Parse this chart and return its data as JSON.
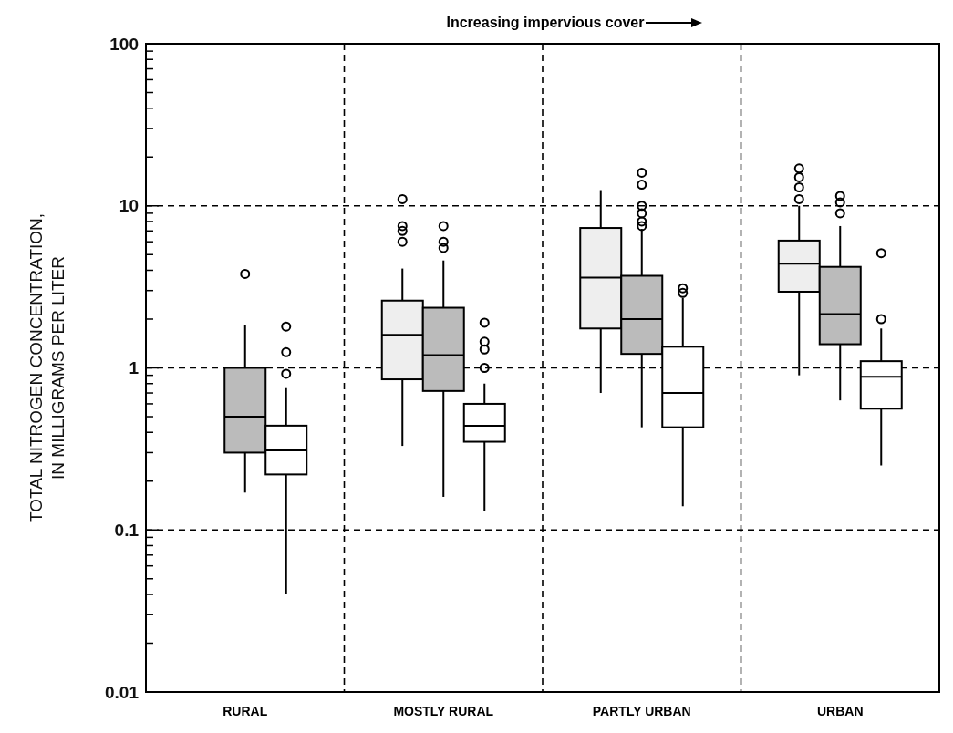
{
  "chart_data": {
    "type": "box",
    "title": "Increasing impervious cover",
    "ylabel": "TOTAL NITROGEN CONCENTRATION, IN MILLIGRAMS PER LITER",
    "categories": [
      "RURAL",
      "MOSTLY RURAL",
      "PARTLY URBAN",
      "URBAN"
    ],
    "log": true,
    "grid": true,
    "ylim": [
      0.01,
      100
    ],
    "yticks": [
      0.01,
      {
        "value": 0.02,
        "label": null
      },
      {
        "value": 0.03,
        "label": null
      },
      {
        "value": 0.04,
        "label": null
      },
      {
        "value": 0.05,
        "label": null
      },
      {
        "value": 0.06,
        "label": null
      },
      {
        "value": 0.07,
        "label": null
      },
      {
        "value": 0.08,
        "label": null
      },
      {
        "value": 0.09,
        "label": null
      },
      0.1,
      {
        "value": 0.2,
        "label": null
      },
      {
        "value": 0.3,
        "label": null
      },
      {
        "value": 0.4,
        "label": null
      },
      {
        "value": 0.5,
        "label": null
      },
      {
        "value": 0.6,
        "label": null
      },
      {
        "value": 0.7,
        "label": null
      },
      {
        "value": 0.8,
        "label": null
      },
      {
        "value": 0.9,
        "label": null
      },
      1,
      {
        "value": 2,
        "label": null
      },
      {
        "value": 3,
        "label": null
      },
      {
        "value": 4,
        "label": null
      },
      {
        "value": 5,
        "label": null
      },
      {
        "value": 6,
        "label": null
      },
      {
        "value": 7,
        "label": null
      },
      {
        "value": 8,
        "label": null
      },
      {
        "value": 9,
        "label": null
      },
      10,
      {
        "value": 20,
        "label": null
      },
      {
        "value": 30,
        "label": null
      },
      {
        "value": 40,
        "label": null
      },
      {
        "value": 50,
        "label": null
      },
      {
        "value": 60,
        "label": null
      },
      {
        "value": 70,
        "label": null
      },
      {
        "value": 80,
        "label": null
      },
      {
        "value": 90,
        "label": null
      },
      100
    ],
    "marker": "circle",
    "series": [
      {
        "color": "#eeeeee",
        "boxes": [
          null,
          {
            "low": 0.33,
            "q1": 0.85,
            "median": 1.6,
            "q3": 2.6,
            "high": 4.1,
            "outliers": [
              11,
              7.5,
              7,
              6
            ]
          },
          {
            "low": 0.7,
            "q1": 1.75,
            "median": 3.6,
            "q3": 7.3,
            "high": 12.5
          },
          {
            "low": 0.9,
            "q1": 2.95,
            "median": 4.4,
            "q3": 6.1,
            "high": 10,
            "outliers": [
              17,
              15,
              13,
              11
            ]
          }
        ]
      },
      {
        "color": "#bbbbbb",
        "boxes": [
          {
            "low": 0.17,
            "q1": 0.3,
            "median": 0.5,
            "q3": 1.0,
            "high": 1.85,
            "outliers": [
              3.8
            ]
          },
          {
            "low": 0.16,
            "q1": 0.72,
            "median": 1.2,
            "q3": 2.35,
            "high": 4.6,
            "outliers": [
              7.5,
              6,
              5.5
            ]
          },
          {
            "low": 0.43,
            "q1": 1.22,
            "median": 2.0,
            "q3": 3.7,
            "high": 7.2,
            "outliers": [
              16,
              13.5,
              10,
              9,
              8,
              7.5
            ]
          },
          {
            "low": 0.63,
            "q1": 1.4,
            "median": 2.15,
            "q3": 4.2,
            "high": 7.5,
            "outliers": [
              11.5,
              10.5,
              9
            ]
          }
        ]
      },
      {
        "color": "#ffffff",
        "boxes": [
          {
            "low": 0.04,
            "q1": 0.22,
            "median": 0.31,
            "q3": 0.44,
            "high": 0.75,
            "outliers": [
              1.8,
              1.25,
              0.92
            ]
          },
          {
            "low": 0.13,
            "q1": 0.35,
            "median": 0.44,
            "q3": 0.6,
            "high": 0.8,
            "outliers": [
              1.9,
              1.45,
              1.3,
              1.0
            ]
          },
          {
            "low": 0.14,
            "q1": 0.43,
            "median": 0.7,
            "q3": 1.35,
            "high": 2.7,
            "outliers": [
              3.1,
              2.9
            ]
          },
          {
            "low": 0.25,
            "q1": 0.56,
            "median": 0.88,
            "q3": 1.1,
            "high": 1.75,
            "outliers": [
              5.1,
              2.0
            ]
          }
        ]
      }
    ]
  }
}
